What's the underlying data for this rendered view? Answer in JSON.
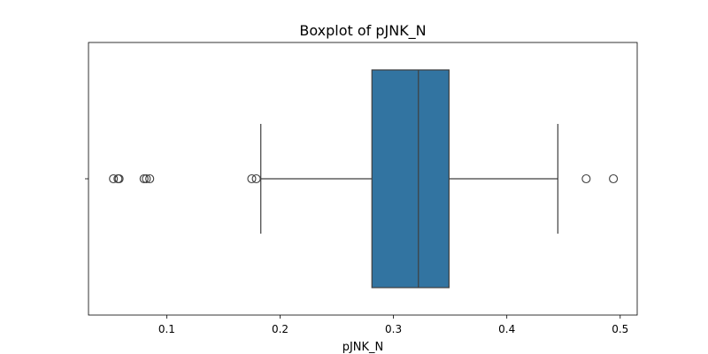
{
  "chart_data": {
    "type": "boxplot",
    "title": "Boxplot of pJNK_N",
    "xlabel": "pJNK_N",
    "ylabel": "",
    "orientation": "horizontal",
    "xlim": [
      0.031,
      0.515
    ],
    "xticks": [
      0.1,
      0.2,
      0.3,
      0.4,
      0.5
    ],
    "xtick_labels": [
      "0.1",
      "0.2",
      "0.3",
      "0.4",
      "0.5"
    ],
    "box": {
      "whisker_low": 0.183,
      "q1": 0.281,
      "median": 0.322,
      "q3": 0.349,
      "whisker_high": 0.445
    },
    "outliers": [
      0.053,
      0.057,
      0.058,
      0.08,
      0.082,
      0.085,
      0.175,
      0.179,
      0.47,
      0.494
    ],
    "color": "#3274a1",
    "grid": false
  }
}
